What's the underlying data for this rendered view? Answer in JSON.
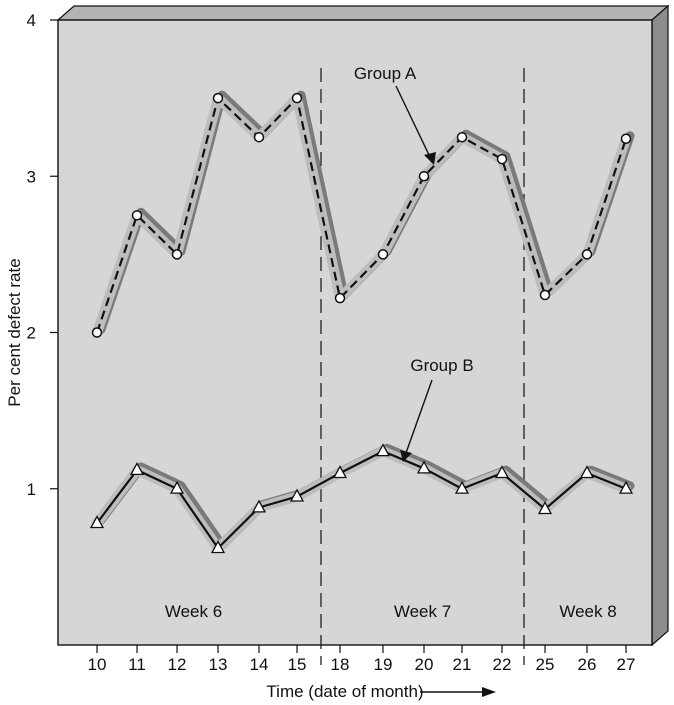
{
  "chart_data": {
    "type": "line",
    "ylabel": "Per cent defect rate",
    "xlabel": "Time (date of month)",
    "ylim": [
      0,
      4
    ],
    "y_ticks": [
      1,
      2,
      3,
      4
    ],
    "categories": [
      "10",
      "11",
      "12",
      "13",
      "14",
      "15",
      "18",
      "19",
      "20",
      "21",
      "22",
      "25",
      "26",
      "27"
    ],
    "series": [
      {
        "name": "Group A",
        "marker": "circle",
        "line_style": "dashed",
        "values": [
          2.0,
          2.75,
          2.5,
          3.5,
          3.25,
          3.5,
          2.22,
          2.5,
          3.0,
          3.25,
          3.11,
          2.24,
          2.5,
          3.24
        ]
      },
      {
        "name": "Group B",
        "marker": "triangle",
        "line_style": "solid",
        "values": [
          0.78,
          1.12,
          1.0,
          0.62,
          0.88,
          0.95,
          1.1,
          1.24,
          1.13,
          1.0,
          1.1,
          0.87,
          1.1,
          1.0
        ]
      }
    ],
    "weeks": [
      {
        "label": "Week 6"
      },
      {
        "label": "Week 7"
      },
      {
        "label": "Week 8"
      }
    ],
    "week_dividers_after_index": [
      5,
      10
    ],
    "colors": {
      "panel": "#d6d6d6",
      "panel_side": "#8c8c8c",
      "panel_top": "#b4b4b4",
      "shadow_light": "#bdbdbd",
      "shadow_dark": "#7a7a7a",
      "line": "#111111"
    }
  }
}
